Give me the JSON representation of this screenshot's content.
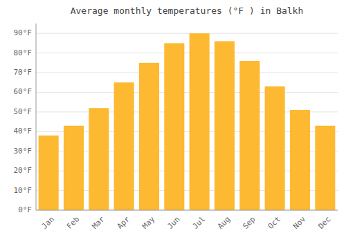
{
  "chart_data": {
    "type": "bar",
    "title": "Average monthly temperatures (°F ) in Balkh",
    "categories": [
      "Jan",
      "Feb",
      "Mar",
      "Apr",
      "May",
      "Jun",
      "Jul",
      "Aug",
      "Sep",
      "Oct",
      "Nov",
      "Dec"
    ],
    "values": [
      38,
      43,
      52,
      65,
      75,
      85,
      90,
      86,
      76,
      63,
      51,
      43
    ],
    "color": "#FDB931",
    "ylim": [
      0,
      95
    ],
    "yticks": [
      {
        "value": 0,
        "label": "0°F"
      },
      {
        "value": 10,
        "label": "10°F"
      },
      {
        "value": 20,
        "label": "20°F"
      },
      {
        "value": 30,
        "label": "30°F"
      },
      {
        "value": 40,
        "label": "40°F"
      },
      {
        "value": 50,
        "label": "50°F"
      },
      {
        "value": 60,
        "label": "60°F"
      },
      {
        "value": 70,
        "label": "70°F"
      },
      {
        "value": 80,
        "label": "80°F"
      },
      {
        "value": 90,
        "label": "90°F"
      }
    ],
    "grid": true
  }
}
